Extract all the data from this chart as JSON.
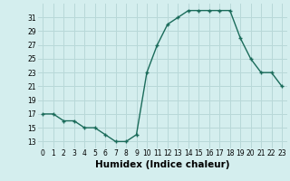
{
  "x": [
    0,
    1,
    2,
    3,
    4,
    5,
    6,
    7,
    8,
    9,
    10,
    11,
    12,
    13,
    14,
    15,
    16,
    17,
    18,
    19,
    20,
    21,
    22,
    23
  ],
  "y": [
    17,
    17,
    16,
    16,
    15,
    15,
    14,
    13,
    13,
    14,
    23,
    27,
    30,
    31,
    32,
    32,
    32,
    32,
    32,
    28,
    25,
    23,
    23,
    21
  ],
  "line_color": "#1a6b5a",
  "marker_color": "#1a6b5a",
  "bg_color": "#d4eeee",
  "grid_color": "#b8d8d8",
  "xlabel": "Humidex (Indice chaleur)",
  "xlim": [
    -0.5,
    23.5
  ],
  "ylim": [
    12,
    33
  ],
  "yticks": [
    13,
    15,
    17,
    19,
    21,
    23,
    25,
    27,
    29,
    31
  ],
  "xticks": [
    0,
    1,
    2,
    3,
    4,
    5,
    6,
    7,
    8,
    9,
    10,
    11,
    12,
    13,
    14,
    15,
    16,
    17,
    18,
    19,
    20,
    21,
    22,
    23
  ],
  "tick_label_fontsize": 5.5,
  "xlabel_fontsize": 7.5
}
